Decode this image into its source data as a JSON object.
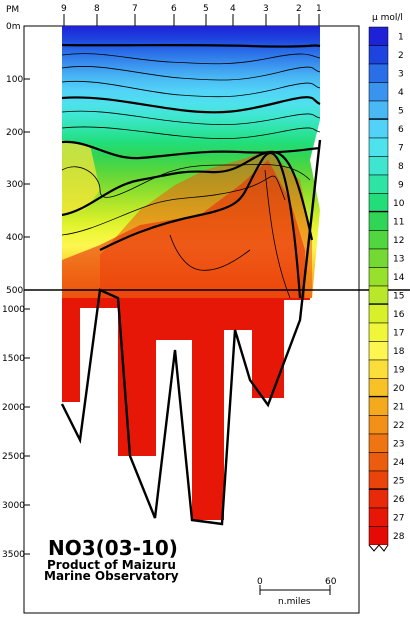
{
  "chart_data": {
    "type": "heatmap",
    "title": "NO3(03-10)",
    "credit_line1": "Product of Maizuru",
    "credit_line2": "Marine Observatory",
    "unit": "μ mol/l",
    "x_axis_label": "PM",
    "stations": [
      "9",
      "8",
      "7",
      "6",
      "5",
      "4",
      "3",
      "2",
      "1"
    ],
    "y_ticks_upper": [
      "0m",
      "100",
      "200",
      "300",
      "400",
      "500"
    ],
    "y_ticks_lower": [
      "1000",
      "1500",
      "2000",
      "2500",
      "3000",
      "3500"
    ],
    "y_break_depth": 500,
    "scale_bar": {
      "start": "0",
      "end": "60",
      "unit": "n.miles"
    },
    "colorbar": {
      "levels": [
        "1",
        "2",
        "3",
        "4",
        "5",
        "6",
        "7",
        "8",
        "9",
        "10",
        "11",
        "12",
        "13",
        "14",
        "15",
        "16",
        "17",
        "18",
        "19",
        "20",
        "21",
        "22",
        "23",
        "24",
        "25",
        "26",
        "27",
        "28"
      ],
      "colors": [
        "#1e22d6",
        "#1e44e0",
        "#2a6ee8",
        "#3a93ee",
        "#49b8f4",
        "#52d2f8",
        "#4ee2ec",
        "#3ee6cf",
        "#2ee4a5",
        "#22de7a",
        "#30d556",
        "#52d640",
        "#74da33",
        "#97e02c",
        "#b9e82a",
        "#d8f02a",
        "#eff738",
        "#fdf650",
        "#fbde3a",
        "#f8c226",
        "#f5a91d",
        "#f29018",
        "#ef7513",
        "#ec5c0f",
        "#ea430c",
        "#e82a0a",
        "#e61707",
        "#e60a06"
      ],
      "bold_levels": [
        "5",
        "10",
        "15",
        "20",
        "25"
      ]
    }
  }
}
